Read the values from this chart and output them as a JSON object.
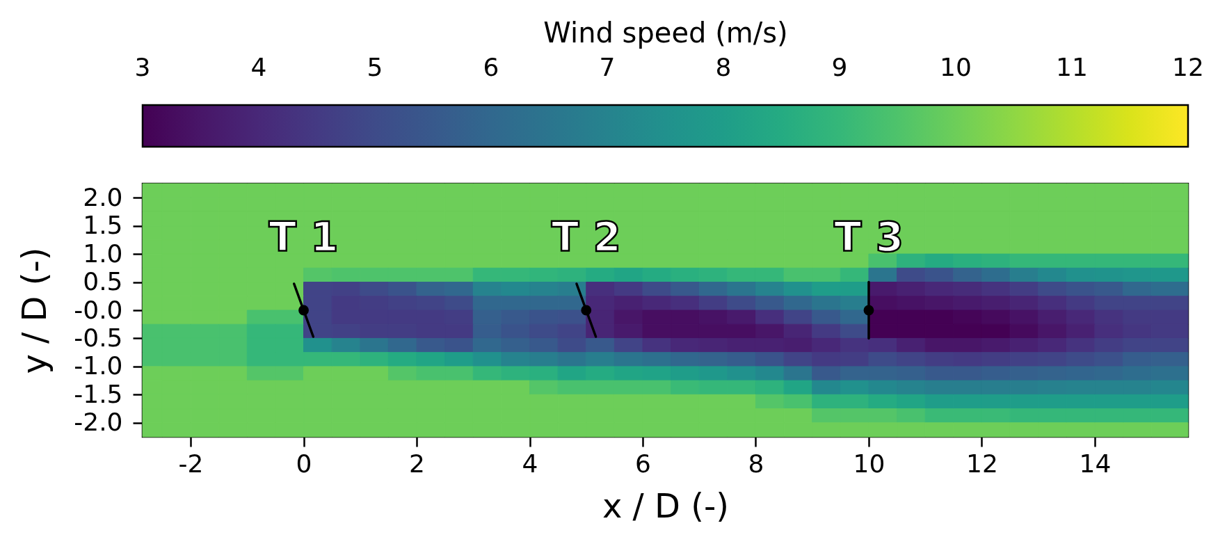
{
  "chart_data": {
    "type": "heatmap",
    "xlabel": "x / D (-)",
    "ylabel": "y / D (-)",
    "clabel": "Wind speed (m/s)",
    "clim": [
      3,
      12
    ],
    "cticks": [
      3,
      4,
      5,
      6,
      7,
      8,
      9,
      10,
      11,
      12
    ],
    "xlim": [
      -2.85,
      15.65
    ],
    "xticks": [
      -2,
      0,
      2,
      4,
      6,
      8,
      10,
      12,
      14
    ],
    "ylim": [
      -2.25,
      2.25
    ],
    "yticks": [
      {
        "value": -2,
        "label": "-2.0"
      },
      -1.5,
      {
        "value": -1,
        "label": "-1.0"
      },
      -0.5,
      {
        "value": 0,
        "label": "-0.0"
      },
      0.5,
      {
        "value": 1,
        "label": "1.0"
      },
      1.5,
      {
        "value": 2,
        "label": "2.0"
      }
    ],
    "x": [
      -2.675,
      -2.25,
      -1.75,
      -1.25,
      -0.75,
      -0.25,
      0.25,
      0.75,
      1.25,
      1.75,
      2.25,
      2.75,
      3.25,
      3.75,
      4.25,
      4.75,
      5.25,
      5.75,
      6.25,
      6.75,
      7.25,
      7.75,
      8.25,
      8.75,
      9.25,
      9.75,
      10.25,
      10.75,
      11.25,
      11.75,
      12.25,
      12.75,
      13.25,
      13.75,
      14.25,
      14.75,
      15.325
    ],
    "cells": [
      [
        10,
        10,
        10,
        10,
        10,
        10,
        10,
        10,
        10,
        10,
        10,
        10,
        10,
        10,
        10,
        10,
        10,
        10,
        10,
        10,
        10,
        10,
        10,
        10,
        10,
        10,
        10,
        10,
        10,
        10,
        10,
        10,
        10,
        10,
        10,
        10,
        10
      ],
      [
        10,
        10,
        10,
        10,
        10,
        10,
        10,
        10,
        10,
        10,
        10,
        10,
        10,
        10,
        10,
        10,
        10,
        10,
        10,
        10,
        10,
        10,
        10,
        10,
        10,
        10,
        10,
        10,
        10,
        10,
        10,
        10,
        10,
        10,
        10,
        10,
        10
      ],
      [
        10,
        10,
        10,
        10,
        10,
        10,
        10,
        10,
        10,
        10,
        10,
        10,
        10,
        10,
        10,
        10,
        10,
        10,
        10,
        10,
        10,
        10,
        10,
        10,
        10,
        10,
        10,
        10,
        10,
        10,
        10,
        10,
        10,
        10,
        10,
        10,
        10
      ],
      [
        10,
        10,
        10,
        10,
        10,
        10,
        10,
        10,
        10,
        10,
        10,
        10,
        10,
        10,
        10,
        10,
        10,
        10,
        10,
        10,
        10,
        10,
        10,
        10,
        10,
        10,
        10,
        10,
        10,
        10,
        10,
        10,
        10,
        10,
        10,
        10,
        10
      ],
      [
        10,
        10,
        10,
        10,
        10,
        10,
        10,
        10,
        10,
        10,
        10,
        10,
        10,
        10,
        10,
        10,
        10,
        10,
        10,
        10,
        10,
        10,
        10,
        10,
        10,
        10,
        10,
        10,
        10,
        10,
        10,
        10,
        10,
        10,
        10,
        10,
        10
      ],
      [
        10,
        10,
        10,
        10,
        10,
        10,
        10,
        10,
        10,
        10,
        10,
        10,
        10,
        10,
        10,
        10,
        10,
        10,
        10,
        10,
        10,
        10,
        10,
        10,
        10,
        10,
        9.4,
        8.8,
        8.5,
        8.7,
        8.8,
        9.0,
        9.0,
        9.0,
        9.0,
        9.0,
        9.0
      ],
      [
        10,
        10,
        10,
        10,
        10,
        10,
        9.6,
        9.5,
        9.5,
        9.5,
        9.5,
        9.5,
        9.0,
        9.0,
        8.9,
        8.8,
        8.5,
        8.3,
        8.5,
        8.7,
        8.8,
        9.0,
        9.0,
        9.4,
        9.4,
        9.0,
        6.5,
        5.0,
        5.3,
        5.8,
        6.2,
        6.8,
        7.2,
        7.5,
        7.6,
        7.7,
        7.8
      ],
      [
        10,
        10,
        10,
        10,
        10,
        10,
        4.8,
        4.7,
        5.0,
        5.3,
        5.8,
        6.0,
        7.0,
        7.2,
        7.0,
        6.8,
        4.2,
        4.5,
        5.0,
        5.5,
        6.0,
        6.5,
        7.0,
        7.5,
        8.0,
        8.0,
        3.6,
        3.8,
        4.0,
        4.1,
        4.3,
        4.6,
        5.0,
        5.3,
        5.5,
        6.0,
        6.2
      ],
      [
        10,
        10,
        10,
        10,
        10,
        10,
        4.8,
        4.5,
        4.6,
        4.7,
        4.8,
        5.0,
        6.0,
        6.0,
        6.0,
        6.0,
        4.0,
        3.8,
        4.0,
        4.2,
        4.6,
        5.0,
        5.5,
        6.0,
        6.5,
        6.8,
        3.3,
        3.4,
        3.5,
        3.6,
        3.7,
        3.9,
        4.2,
        4.5,
        4.8,
        4.8,
        4.8
      ],
      [
        10,
        10,
        10,
        10,
        9.4,
        9.4,
        4.8,
        4.5,
        4.5,
        4.5,
        4.5,
        4.6,
        5.7,
        5.5,
        5.3,
        5.2,
        3.9,
        3.5,
        3.3,
        3.3,
        3.4,
        3.6,
        4.2,
        4.8,
        5.5,
        6.0,
        3.0,
        3.0,
        3.0,
        3.1,
        3.2,
        3.4,
        3.7,
        4.0,
        4.3,
        4.5,
        4.5
      ],
      [
        9.4,
        9.4,
        9.4,
        9.4,
        9.0,
        9.0,
        4.8,
        4.7,
        4.6,
        4.6,
        4.5,
        4.5,
        5.6,
        5.3,
        5.0,
        4.8,
        3.9,
        3.6,
        3.3,
        3.3,
        3.3,
        3.3,
        3.5,
        3.9,
        4.5,
        5.0,
        3.0,
        3.0,
        3.0,
        3.0,
        3.0,
        3.2,
        3.5,
        3.8,
        4.2,
        4.4,
        4.5
      ],
      [
        9.4,
        9.4,
        9.4,
        9.4,
        9.0,
        9.0,
        7.5,
        7.0,
        6.5,
        6.0,
        5.5,
        5.3,
        6.0,
        5.7,
        5.5,
        5.0,
        5.5,
        4.8,
        4.3,
        4.0,
        3.9,
        3.8,
        3.8,
        3.7,
        4.0,
        4.3,
        4.2,
        3.8,
        3.5,
        3.5,
        3.6,
        3.8,
        4.0,
        4.3,
        4.6,
        4.8,
        4.8
      ],
      [
        9.4,
        9.4,
        9.4,
        9.4,
        9.0,
        9.0,
        9.0,
        9.0,
        8.8,
        8.5,
        8.3,
        8.0,
        7.5,
        7.0,
        6.8,
        6.5,
        6.8,
        6.5,
        6.3,
        6.0,
        5.8,
        5.6,
        5.3,
        4.8,
        4.5,
        4.6,
        5.0,
        4.8,
        4.6,
        4.5,
        4.6,
        4.7,
        4.8,
        5.0,
        5.2,
        5.6,
        5.7
      ],
      [
        10,
        10,
        10,
        10,
        9.6,
        9.6,
        10,
        10,
        10,
        9.6,
        9.4,
        9.4,
        9.0,
        8.8,
        8.7,
        8.3,
        8.5,
        8.3,
        8.2,
        8.0,
        7.8,
        7.5,
        7.2,
        6.5,
        5.5,
        5.8,
        5.8,
        5.7,
        5.5,
        5.5,
        5.6,
        5.7,
        5.8,
        5.9,
        6.0,
        6.2,
        6.3
      ],
      [
        10,
        10,
        10,
        10,
        10,
        10,
        10,
        10,
        10,
        10,
        10,
        10,
        10,
        10,
        9.6,
        9.4,
        9.4,
        9.4,
        9.4,
        9.1,
        9.0,
        9.0,
        8.8,
        8.3,
        7.2,
        7.5,
        7.2,
        7.0,
        6.8,
        6.8,
        6.8,
        6.8,
        6.9,
        7.0,
        7.0,
        7.0,
        7.1
      ],
      [
        10,
        10,
        10,
        10,
        10,
        10,
        10,
        10,
        10,
        10,
        10,
        10,
        10,
        10,
        10,
        10,
        10,
        10,
        10,
        10,
        10,
        10,
        9.6,
        9.4,
        8.8,
        8.8,
        8.5,
        8.3,
        8.0,
        8.0,
        8.0,
        8.0,
        8.0,
        8.0,
        8.0,
        8.0,
        8.0
      ],
      [
        10,
        10,
        10,
        10,
        10,
        10,
        10,
        10,
        10,
        10,
        10,
        10,
        10,
        10,
        10,
        10,
        10,
        10,
        10,
        10,
        10,
        10,
        10,
        10,
        9.6,
        9.6,
        9.6,
        9.4,
        9.1,
        9.1,
        9.1,
        9.0,
        9.0,
        9.0,
        9.0,
        9.0,
        9.0
      ],
      [
        10,
        10,
        10,
        10,
        10,
        10,
        10,
        10,
        10,
        10,
        10,
        10,
        10,
        10,
        10,
        10,
        10,
        10,
        10,
        10,
        10,
        10,
        10,
        10,
        10,
        10,
        10,
        10,
        10,
        10,
        10,
        10,
        10,
        10,
        10,
        10,
        10
      ]
    ],
    "series": [
      {
        "type": "line",
        "color": "#000000",
        "x": [
          -0.17,
          0.17
        ],
        "values": [
          0.47,
          -0.47
        ]
      },
      {
        "type": "line",
        "color": "#000000",
        "x": [
          4.83,
          5.17
        ],
        "values": [
          0.47,
          -0.47
        ]
      },
      {
        "type": "line",
        "color": "#000000",
        "x": [
          10,
          10
        ],
        "values": [
          0.5,
          -0.5
        ]
      },
      {
        "type": "scatter",
        "color": "#000000",
        "marker": "circle",
        "x": [
          0,
          5,
          10
        ],
        "values": [
          0,
          0,
          0
        ]
      }
    ],
    "annotations": [
      {
        "text": "T 1",
        "x": 0,
        "y": 0
      },
      {
        "text": "T 2",
        "x": 5,
        "y": 0
      },
      {
        "text": "T 3",
        "x": 10,
        "y": 0
      }
    ]
  }
}
